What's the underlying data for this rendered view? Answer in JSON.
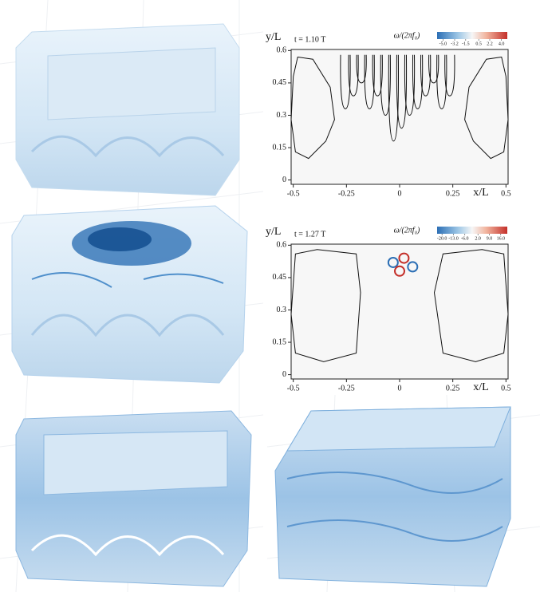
{
  "chart_data": [
    {
      "type": "contour",
      "title": "t = 1.10 T",
      "colorbar_label": "ω/(2πf₀)",
      "xlabel": "x/L",
      "ylabel": "y/L",
      "xlim": [
        -0.51,
        0.51
      ],
      "ylim": [
        -0.02,
        0.605
      ],
      "xticks": [
        -0.5,
        -0.25,
        0,
        0.25,
        0.5
      ],
      "yticks": [
        0,
        0.15,
        0.3,
        0.45,
        0.6
      ],
      "clim": [
        -5.9,
        4.9
      ],
      "cticks": [
        {
          "value": -5,
          "label": "-5.0"
        },
        -3.2,
        -1.5,
        0.5,
        2.2,
        {
          "value": 4,
          "label": "4.0"
        }
      ]
    },
    {
      "type": "contour",
      "title": "t = 1.27 T",
      "colorbar_label": "ω/(2πf₀)",
      "xlabel": "x/L",
      "ylabel": "y/L",
      "xlim": [
        -0.51,
        0.51
      ],
      "ylim": [
        -0.02,
        0.605
      ],
      "xticks": [
        -0.5,
        -0.25,
        0,
        0.25,
        0.5
      ],
      "yticks": [
        0,
        0.15,
        0.3,
        0.45,
        0.6
      ],
      "clim": [
        -23,
        20
      ],
      "cticks": [
        {
          "value": -20,
          "label": "-20.0"
        },
        {
          "value": -13,
          "label": "-13.0"
        },
        {
          "value": -6,
          "label": "-6.0"
        },
        {
          "value": 2,
          "label": "2.0"
        },
        {
          "value": 9,
          "label": "9.0"
        },
        {
          "value": 16,
          "label": "16.0"
        }
      ]
    }
  ]
}
